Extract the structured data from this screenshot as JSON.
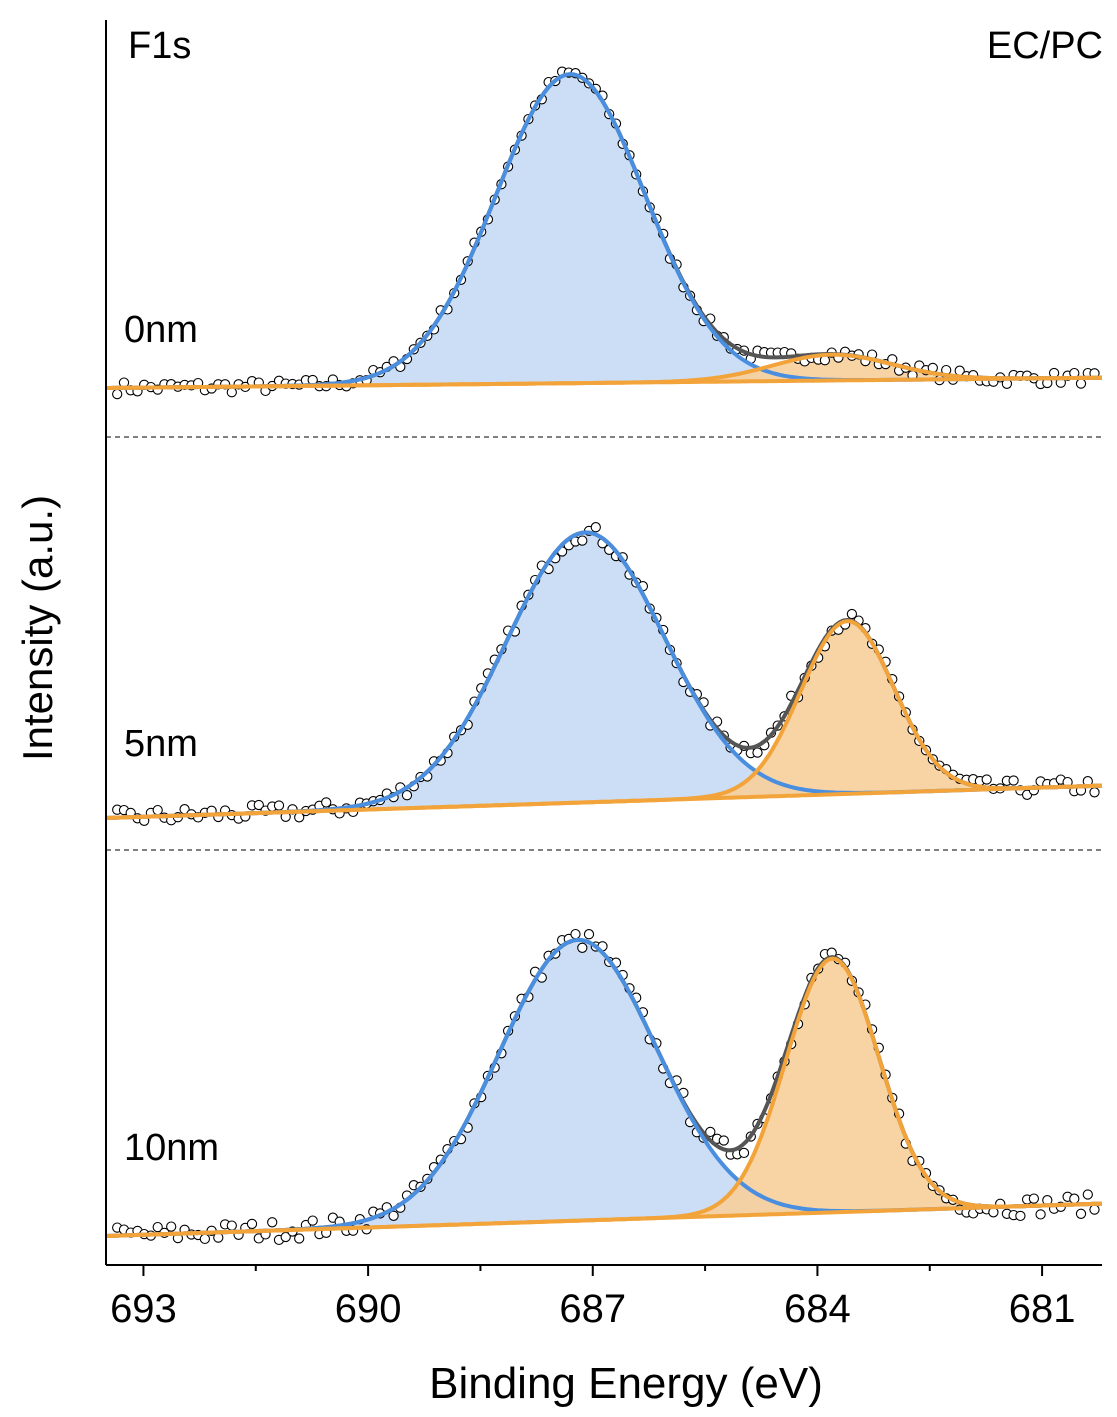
{
  "chart_data": {
    "type": "line",
    "title": "",
    "element_label": "F1s",
    "condition_label": "EC/PC",
    "xlabel": "Binding Energy (eV)",
    "ylabel": "Intensity (a.u.)",
    "xlim": [
      693.5,
      680.2
    ],
    "x_reversed": true,
    "x_ticks": [
      693,
      690,
      687,
      684,
      681
    ],
    "x_minor_ticks": [
      691.5,
      688.5,
      685.5,
      682.5
    ],
    "grid": false,
    "legend": "none",
    "y_ticks_shown": false,
    "colors": {
      "peak_high": "#4a8ee0",
      "peak_high_fill": "#c5daf5",
      "peak_low": "#f2a33a",
      "peak_low_fill": "#f7cf9b",
      "envelope": "#555555",
      "background": "#f2a33a",
      "points": "#000000",
      "separator": "#000000"
    },
    "panels": [
      {
        "name": "0nm",
        "background_line": [
          [
            693.5,
            0.0
          ],
          [
            680.2,
            0.02
          ]
        ],
        "peak_high": {
          "center": 687.3,
          "amplitude": 0.6,
          "sigma": 1.0
        },
        "peak_low": {
          "center": 683.8,
          "amplitude": 0.05,
          "sigma": 0.8
        },
        "noise": 0.012
      },
      {
        "name": "5nm",
        "background_line": [
          [
            693.5,
            0.0
          ],
          [
            680.2,
            0.06
          ]
        ],
        "peak_high": {
          "center": 687.1,
          "amplitude": 0.5,
          "sigma": 1.05
        },
        "peak_low": {
          "center": 683.6,
          "amplitude": 0.32,
          "sigma": 0.62
        },
        "noise": 0.015
      },
      {
        "name": "10nm",
        "background_line": [
          [
            693.5,
            0.0
          ],
          [
            680.2,
            0.06
          ]
        ],
        "peak_high": {
          "center": 687.2,
          "amplitude": 0.52,
          "sigma": 1.05
        },
        "peak_low": {
          "center": 683.8,
          "amplitude": 0.47,
          "sigma": 0.62
        },
        "noise": 0.018
      }
    ]
  }
}
